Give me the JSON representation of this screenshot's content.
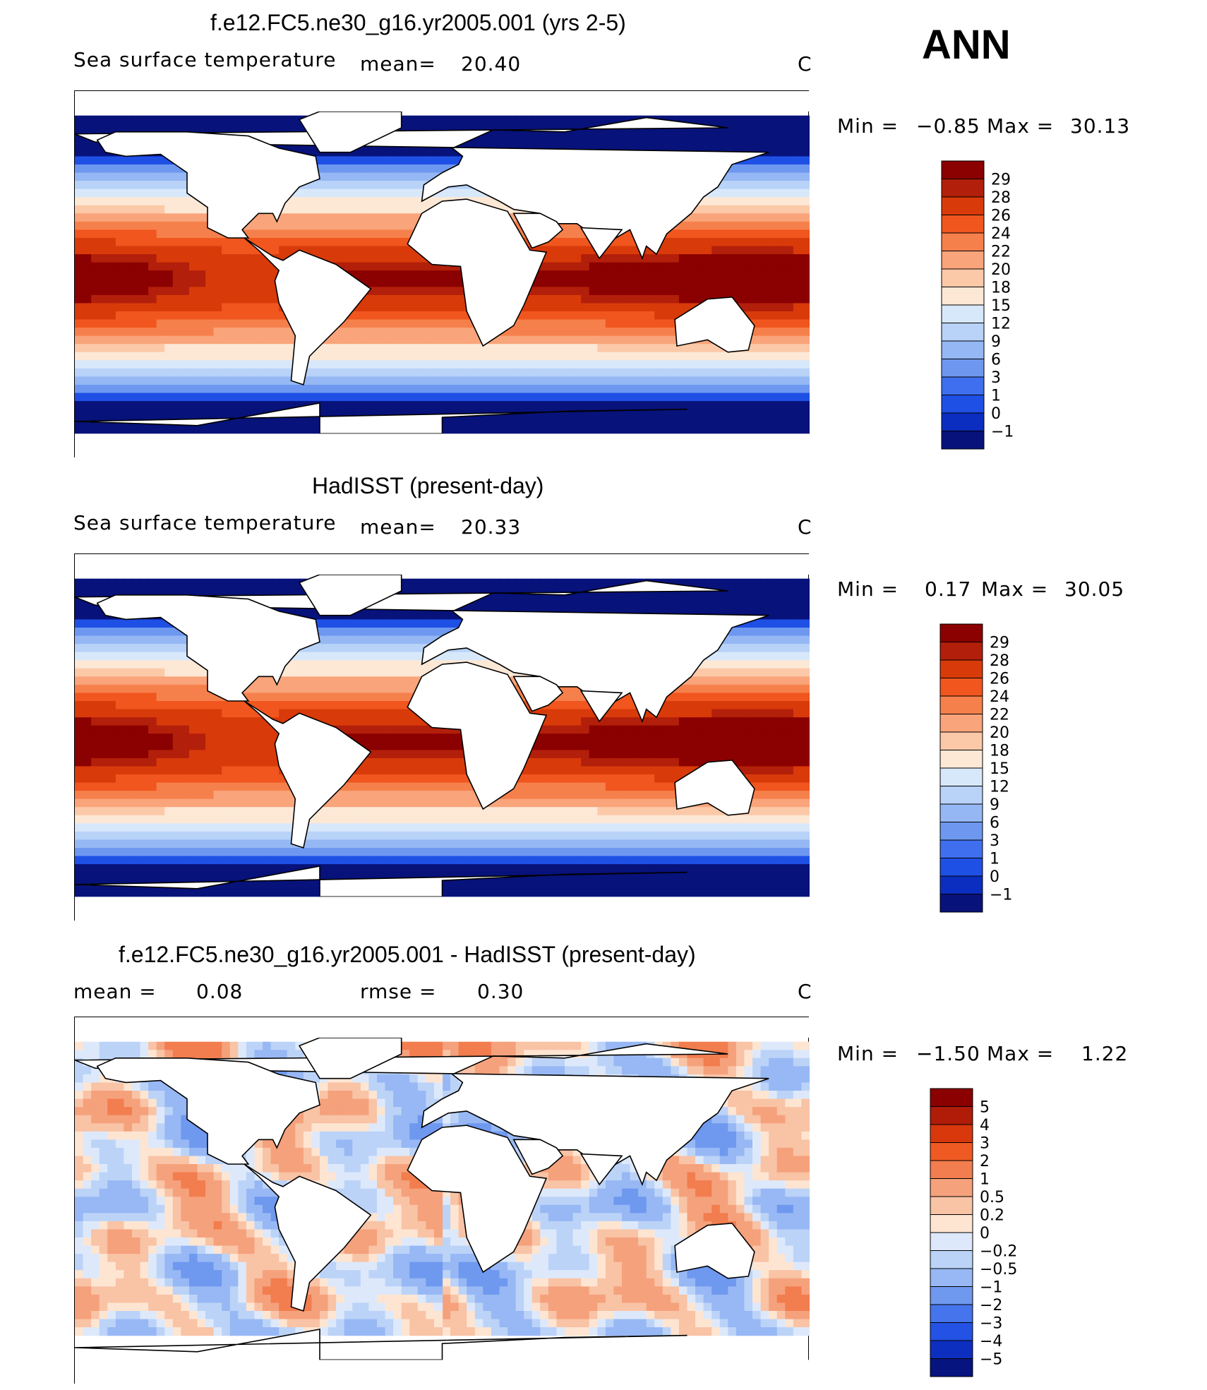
{
  "season": "ANN",
  "panels": [
    {
      "title": "f.e12.FC5.ne30_g16.yr2005.001 (yrs 2-5)",
      "left_label": "Sea surface temperature",
      "mean_label": "mean=",
      "mean_value": "20.40",
      "units": "C",
      "min_label": "Min =",
      "min_value": "−0.85",
      "max_label": "Max =",
      "max_value": "30.13",
      "colorbar_labels": [
        "29",
        "28",
        "26",
        "24",
        "22",
        "20",
        "18",
        "15",
        "12",
        "9",
        "6",
        "3",
        "1",
        "0",
        "−1"
      ]
    },
    {
      "title": "HadISST (present-day)",
      "left_label": "Sea surface temperature",
      "mean_label": "mean=",
      "mean_value": "20.33",
      "units": "C",
      "min_label": "Min =",
      "min_value": "0.17",
      "max_label": "Max =",
      "max_value": "30.05",
      "colorbar_labels": [
        "29",
        "28",
        "26",
        "24",
        "22",
        "20",
        "18",
        "15",
        "12",
        "9",
        "6",
        "3",
        "1",
        "0",
        "−1"
      ]
    },
    {
      "title": "f.e12.FC5.ne30_g16.yr2005.001 - HadISST (present-day)",
      "mean_label": "mean =",
      "mean_value": "0.08",
      "rmse_label": "rmse =",
      "rmse_value": "0.30",
      "units": "C",
      "min_label": "Min =",
      "min_value": "−1.50",
      "max_label": "Max =",
      "max_value": "1.22",
      "colorbar_labels": [
        "5",
        "4",
        "3",
        "2",
        "1",
        "0.5",
        "0.2",
        "0",
        "−0.2",
        "−0.5",
        "−1",
        "−2",
        "−3",
        "−4",
        "−5"
      ]
    }
  ],
  "colors": {
    "sst_scale": [
      "#8b0000",
      "#b21f0a",
      "#d93a0a",
      "#f0561e",
      "#f6804c",
      "#f9a47a",
      "#fcc9a8",
      "#fde8d6",
      "#d8e8fb",
      "#b8d2f8",
      "#95b8f4",
      "#6e98ef",
      "#3f6fee",
      "#1f50e6",
      "#0b2ec0",
      "#07127a"
    ],
    "diff_scale": [
      "#8b0000",
      "#b01c08",
      "#d8380c",
      "#ef5a22",
      "#f27d4e",
      "#f5a17c",
      "#f9c3a5",
      "#fde5d2",
      "#dde9fb",
      "#bcd3f8",
      "#97b8f4",
      "#6f98ef",
      "#4574ec",
      "#2352e4",
      "#0c2fbf",
      "#061480"
    ]
  },
  "chart_data": [
    {
      "type": "heatmap",
      "title": "f.e12.FC5.ne30_g16.yr2005.001 (yrs 2-5)",
      "variable": "Sea surface temperature",
      "units": "C",
      "mean": 20.4,
      "min": -0.85,
      "max": 30.13,
      "contour_levels": [
        -1,
        0,
        1,
        3,
        6,
        9,
        12,
        15,
        18,
        20,
        22,
        24,
        26,
        28,
        29
      ]
    },
    {
      "type": "heatmap",
      "title": "HadISST (present-day)",
      "variable": "Sea surface temperature",
      "units": "C",
      "mean": 20.33,
      "min": 0.17,
      "max": 30.05,
      "contour_levels": [
        -1,
        0,
        1,
        3,
        6,
        9,
        12,
        15,
        18,
        20,
        22,
        24,
        26,
        28,
        29
      ]
    },
    {
      "type": "heatmap",
      "title": "f.e12.FC5.ne30_g16.yr2005.001 - HadISST (present-day)",
      "units": "C",
      "mean": 0.08,
      "rmse": 0.3,
      "min": -1.5,
      "max": 1.22,
      "contour_levels": [
        -5,
        -4,
        -3,
        -2,
        -1,
        -0.5,
        -0.2,
        0,
        0.2,
        0.5,
        1,
        2,
        3,
        4,
        5
      ]
    }
  ]
}
